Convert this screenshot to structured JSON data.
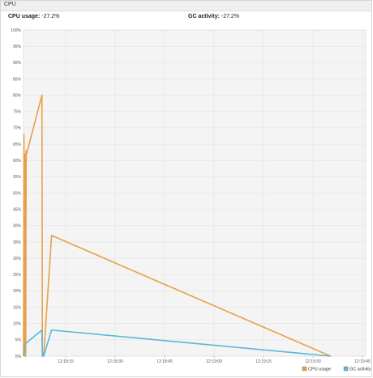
{
  "window": {
    "title": "CPU"
  },
  "stats": {
    "cpu_label": "CPU usage:",
    "cpu_value": "-27.2%",
    "gc_label": "GC activity:",
    "gc_value": "-27.2%"
  },
  "chart_data": {
    "type": "line",
    "ylim": [
      0,
      100
    ],
    "y_ticks": [
      "0%",
      "5%",
      "10%",
      "15%",
      "20%",
      "25%",
      "30%",
      "35%",
      "40%",
      "45%",
      "50%",
      "55%",
      "60%",
      "65%",
      "70%",
      "75%",
      "80%",
      "85%",
      "90%",
      "95%",
      "100%"
    ],
    "x_ticks": [
      "12:18:15",
      "12:18:30",
      "12:18:45",
      "12:19:00",
      "12:19:15",
      "12:19:30",
      "12:19:45"
    ],
    "xlim": [
      0,
      390
    ],
    "series": [
      {
        "name": "CPU usage",
        "color": "#e8a04a",
        "points": [
          [
            0,
            0
          ],
          [
            0.5,
            68
          ],
          [
            1.5,
            0
          ],
          [
            2,
            62
          ],
          [
            2.5,
            0
          ],
          [
            3,
            63
          ],
          [
            3.5,
            62
          ],
          [
            21,
            80
          ],
          [
            21.5,
            0
          ],
          [
            22,
            1
          ],
          [
            23,
            0
          ],
          [
            32,
            37
          ],
          [
            350,
            0
          ]
        ]
      },
      {
        "name": "GC activity",
        "color": "#5ab8d8",
        "points": [
          [
            0,
            0
          ],
          [
            1,
            3
          ],
          [
            3,
            4
          ],
          [
            21,
            8
          ],
          [
            21.5,
            0
          ],
          [
            22,
            1
          ],
          [
            23,
            0
          ],
          [
            32,
            8
          ],
          [
            350,
            0
          ]
        ]
      }
    ],
    "legend": [
      "CPU usage",
      "GC activity"
    ],
    "legend_position": "bottom-right",
    "grid": true
  }
}
